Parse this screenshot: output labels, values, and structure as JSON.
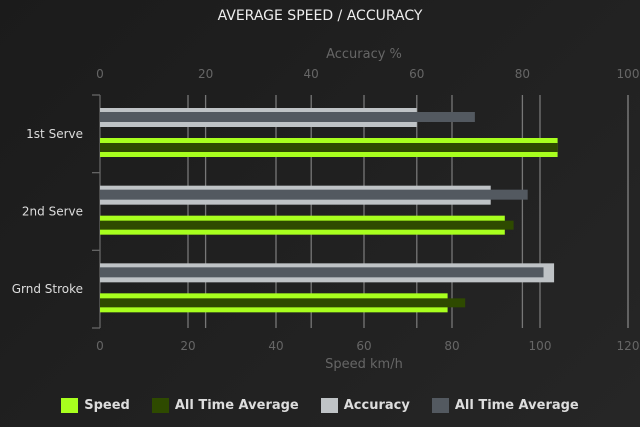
{
  "chart_data": {
    "type": "bar",
    "orientation": "horizontal",
    "title": "AVERAGE SPEED / ACCURACY",
    "categories": [
      "1st Serve",
      "2nd Serve",
      "Grnd Stroke"
    ],
    "x_top": {
      "label": "Accuracy %",
      "range": [
        0,
        100
      ],
      "ticks": [
        0,
        20,
        40,
        60,
        80,
        100
      ]
    },
    "x_bottom": {
      "label": "Speed km/h",
      "range": [
        0,
        120
      ],
      "ticks": [
        0,
        20,
        40,
        60,
        80,
        100,
        120
      ]
    },
    "series": [
      {
        "name": "Speed",
        "axis": "speed",
        "color": "#a8ff1e",
        "values": [
          104,
          92,
          79
        ]
      },
      {
        "name": "All Time Average",
        "axis": "speed",
        "color": "#2e4a00",
        "values": [
          104,
          94,
          83
        ]
      },
      {
        "name": "Accuracy",
        "axis": "accuracy",
        "color": "#bfc3c6",
        "values": [
          60,
          74,
          86
        ]
      },
      {
        "name": "All Time Average",
        "axis": "accuracy",
        "color": "#535960",
        "values": [
          71,
          81,
          84
        ]
      }
    ],
    "grid": true,
    "legend": "bottom"
  }
}
